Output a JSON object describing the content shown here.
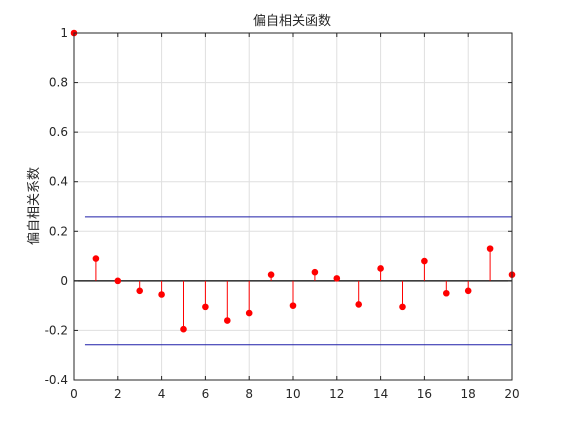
{
  "chart_data": {
    "type": "stem",
    "title": "偏自相关函数",
    "xlabel": "",
    "ylabel": "偏自相关系数",
    "xlim": [
      0,
      20
    ],
    "ylim": [
      -0.4,
      1
    ],
    "xticks": [
      0,
      2,
      4,
      6,
      8,
      10,
      12,
      14,
      16,
      18,
      20
    ],
    "yticks": [
      -0.4,
      -0.2,
      0,
      0.2,
      0.4,
      0.6,
      0.8,
      1
    ],
    "grid": true,
    "series": [
      {
        "x": [
          0,
          1,
          2,
          3,
          4,
          5,
          6,
          7,
          8,
          9,
          10,
          11,
          12,
          13,
          14,
          15,
          16,
          17,
          18,
          19,
          20
        ],
        "values": [
          1,
          0.09,
          0.0,
          -0.04,
          -0.055,
          -0.195,
          -0.105,
          -0.16,
          -0.13,
          0.025,
          -0.1,
          0.035,
          0.01,
          -0.095,
          0.05,
          -0.105,
          0.08,
          -0.05,
          -0.04,
          0.13,
          0.025
        ],
        "color": "#ff0000"
      }
    ],
    "bounds": {
      "upper": 0.258,
      "lower": -0.258,
      "color": "#1f1fa8",
      "x_start": 0.5
    },
    "baseline_color": "#000000"
  }
}
